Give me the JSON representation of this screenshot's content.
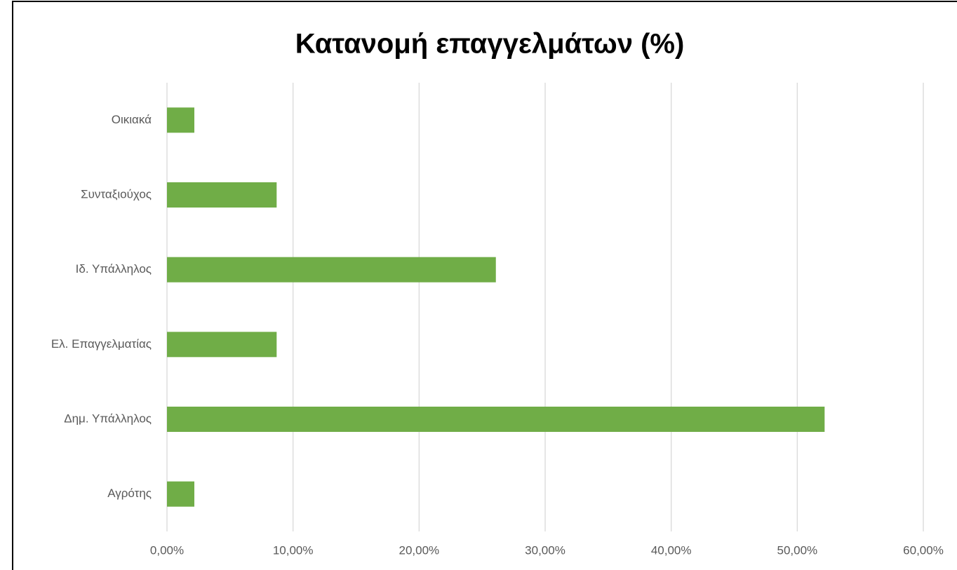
{
  "chart_data": {
    "type": "bar",
    "orientation": "horizontal",
    "title": "Κατανομή επαγγελμάτων (%)",
    "categories": [
      "Οικιακά",
      "Συνταξιούχος",
      "Ιδ. Υπάλληλος",
      "Ελ. Επαγγελματίας",
      "Δημ. Υπάλληλος",
      "Αγρότης"
    ],
    "values": [
      2.17,
      8.7,
      26.09,
      8.7,
      52.17,
      2.17
    ],
    "color": "#70ad47",
    "xlim": [
      0,
      60
    ],
    "xticks": [
      {
        "value": 0,
        "label": "0,00%"
      },
      {
        "value": 10,
        "label": "10,00%"
      },
      {
        "value": 20,
        "label": "20,00%"
      },
      {
        "value": 30,
        "label": "30,00%"
      },
      {
        "value": 40,
        "label": "40,00%"
      },
      {
        "value": 50,
        "label": "50,00%"
      },
      {
        "value": 60,
        "label": "60,00%"
      }
    ],
    "grid": true
  }
}
